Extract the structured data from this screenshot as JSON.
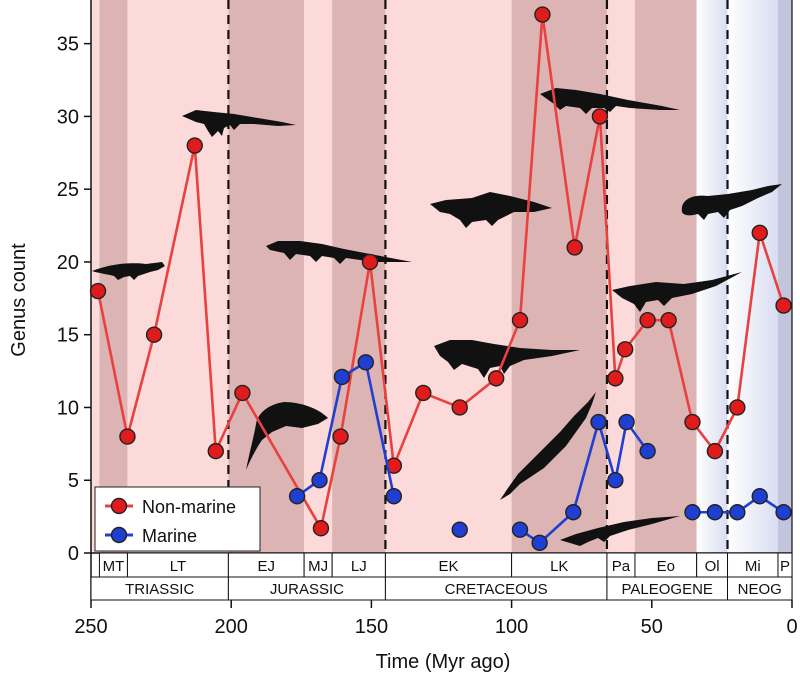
{
  "chart_data": {
    "type": "line",
    "title": "",
    "xlabel": "Time (Myr ago)",
    "ylabel": "Genus count",
    "xlim": [
      250,
      0
    ],
    "ylim": [
      0,
      38
    ],
    "xticks": [
      250,
      200,
      150,
      100,
      50,
      0
    ],
    "yticks": [
      0,
      5,
      10,
      15,
      20,
      25,
      30,
      35
    ],
    "series": [
      {
        "name": "Non-marine",
        "color": "#e8413f",
        "marker_fill": "#e01b1b",
        "points": [
          [
            247.5,
            18
          ],
          [
            237,
            8
          ],
          [
            227.5,
            15
          ],
          [
            213,
            28
          ],
          [
            205.5,
            7
          ],
          [
            196,
            11
          ],
          [
            168,
            1.7
          ],
          [
            161,
            8
          ],
          [
            150.5,
            20
          ],
          [
            142,
            6
          ],
          [
            131.5,
            11
          ],
          [
            118.5,
            10
          ],
          [
            105.5,
            12
          ],
          [
            97,
            16
          ],
          [
            89,
            37
          ],
          [
            77.5,
            21
          ],
          [
            68.5,
            30
          ],
          [
            63,
            12
          ],
          [
            59.5,
            14
          ],
          [
            51.5,
            16
          ],
          [
            44,
            16
          ],
          [
            35.5,
            9
          ],
          [
            27.5,
            7
          ],
          [
            19.5,
            10
          ],
          [
            11.5,
            22
          ],
          [
            3,
            17
          ]
        ]
      },
      {
        "name": "Marine",
        "color": "#1f3fd1",
        "marker_fill": "#1f3fd1",
        "points": [
          [
            176.5,
            3.9
          ],
          [
            168.5,
            5
          ],
          [
            160.5,
            12.1
          ],
          [
            152,
            13.1
          ],
          [
            142,
            3.9
          ],
          null,
          [
            118.5,
            1.6
          ],
          null,
          [
            97,
            1.6
          ],
          [
            90,
            0.7
          ],
          [
            78,
            2.8
          ],
          [
            69,
            9
          ],
          [
            63,
            5
          ],
          [
            59,
            9
          ],
          [
            51.5,
            7
          ],
          null,
          [
            35.5,
            2.8
          ],
          [
            27.5,
            2.8
          ],
          [
            19.5,
            2.8
          ],
          [
            11.5,
            3.9
          ],
          [
            3,
            2.8
          ]
        ]
      }
    ],
    "legend": {
      "position": "bottom-left",
      "items": [
        "Non-marine",
        "Marine"
      ]
    },
    "period_boundaries": [
      201,
      145,
      66,
      23
    ],
    "epochs": [
      {
        "label": "MT",
        "start": 247,
        "end": 237
      },
      {
        "label": "LT",
        "start": 237,
        "end": 201
      },
      {
        "label": "EJ",
        "start": 201,
        "end": 174
      },
      {
        "label": "MJ",
        "start": 174,
        "end": 164
      },
      {
        "label": "LJ",
        "start": 164,
        "end": 145
      },
      {
        "label": "EK",
        "start": 145,
        "end": 100
      },
      {
        "label": "LK",
        "start": 100,
        "end": 66
      },
      {
        "label": "Pa",
        "start": 66,
        "end": 56
      },
      {
        "label": "Eo",
        "start": 56,
        "end": 34
      },
      {
        "label": "Ol",
        "start": 34,
        "end": 23
      },
      {
        "label": "Mi",
        "start": 23,
        "end": 5
      },
      {
        "label": "P",
        "start": 5,
        "end": 0
      }
    ],
    "periods": [
      {
        "label": "TRIASSIC",
        "start": 250,
        "end": 201
      },
      {
        "label": "JURASSIC",
        "start": 201,
        "end": 145
      },
      {
        "label": "CRETACEOUS",
        "start": 145,
        "end": 66
      },
      {
        "label": "PALEOGENE",
        "start": 66,
        "end": 23
      },
      {
        "label": "NEOG",
        "start": 23,
        "end": 0
      }
    ],
    "background_bands": [
      {
        "start": 250,
        "end": 247,
        "tone": "light"
      },
      {
        "start": 247,
        "end": 237,
        "tone": "dark"
      },
      {
        "start": 237,
        "end": 201,
        "tone": "light"
      },
      {
        "start": 201,
        "end": 174,
        "tone": "dark"
      },
      {
        "start": 174,
        "end": 164,
        "tone": "light"
      },
      {
        "start": 164,
        "end": 145,
        "tone": "dark"
      },
      {
        "start": 145,
        "end": 100,
        "tone": "light"
      },
      {
        "start": 100,
        "end": 66,
        "tone": "dark"
      },
      {
        "start": 66,
        "end": 56,
        "tone": "light"
      },
      {
        "start": 56,
        "end": 34,
        "tone": "dark"
      },
      {
        "start": 34,
        "end": 23,
        "tone": "cool-light"
      },
      {
        "start": 23,
        "end": 5,
        "tone": "cool-light"
      },
      {
        "start": 5,
        "end": 0,
        "tone": "cool-dark"
      }
    ],
    "colors": {
      "band_light": "#fcdada",
      "band_dark": "#dcb4b4",
      "band_cool_light": "#e8ebf7",
      "band_cool_dark": "#c4c5dc",
      "non_marine_line": "#e8413f",
      "marine_line": "#1f3fd1"
    }
  }
}
